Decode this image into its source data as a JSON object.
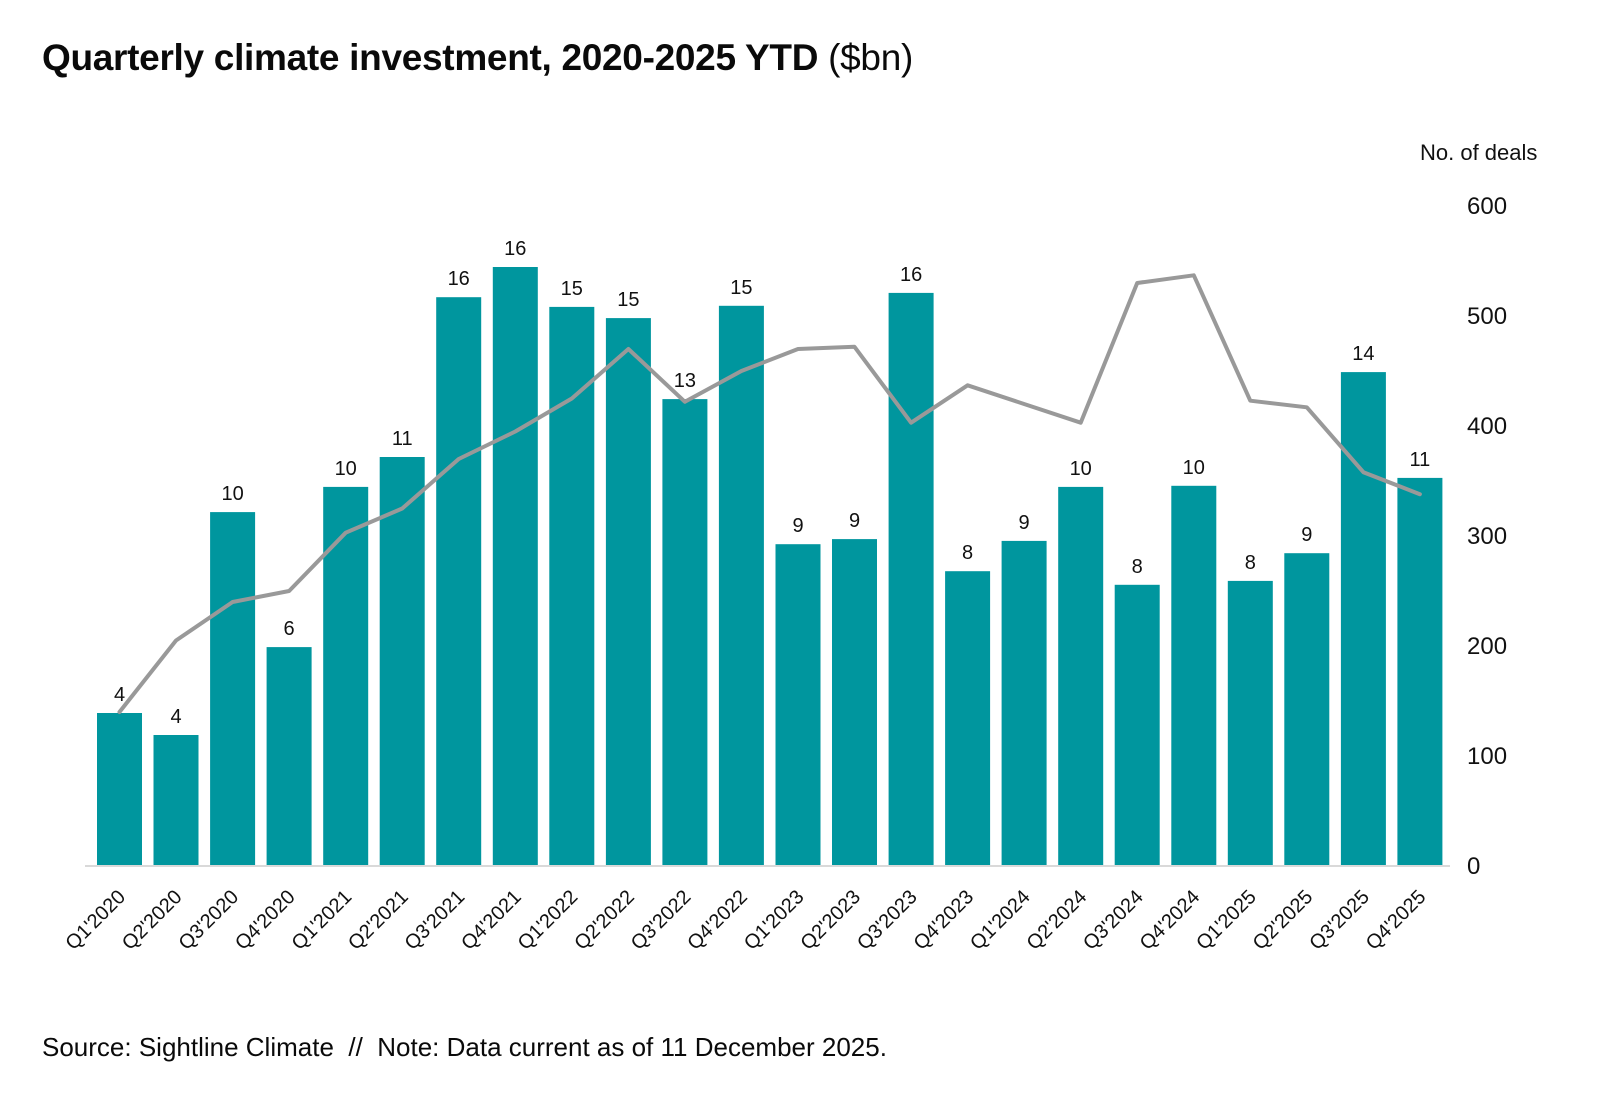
{
  "title": {
    "main": "Quarterly climate investment, 2020-2025 YTD",
    "suffix": " ($bn)"
  },
  "footer": "Source: Sightline Climate  //  Note: Data current as of 11 December 2025.",
  "colors": {
    "bar": "#00969E",
    "line": "#999999",
    "axis_line": "#D9D9D9",
    "text": "#111111"
  },
  "chart_data": {
    "type": "bar+line",
    "title": "Quarterly climate investment, 2020-2025 YTD ($bn)",
    "categories": [
      "Q1'2020",
      "Q2'2020",
      "Q3'2020",
      "Q4'2020",
      "Q1'2021",
      "Q2'2021",
      "Q3'2021",
      "Q4'2021",
      "Q1'2022",
      "Q2'2022",
      "Q3'2022",
      "Q4'2022",
      "Q1'2023",
      "Q2'2023",
      "Q3'2023",
      "Q4'2023",
      "Q1'2024",
      "Q2'2024",
      "Q3'2024",
      "Q4'2024",
      "Q1'2025",
      "Q2'2025",
      "Q3'2025",
      "Q4'2025"
    ],
    "series": [
      {
        "name": "Quarterly climate investment ($bn)",
        "type": "bar",
        "values": [
          4,
          4,
          10,
          6,
          10,
          11,
          16,
          16,
          15,
          15,
          13,
          15,
          9,
          9,
          16,
          8,
          9,
          10,
          8,
          10,
          8,
          9,
          14,
          11
        ],
        "values_est_bn": [
          4.25,
          3.64,
          9.83,
          6.08,
          10.53,
          11.36,
          15.8,
          16.64,
          15.53,
          15.22,
          12.97,
          15.56,
          8.94,
          9.08,
          15.92,
          8.19,
          9.03,
          10.53,
          7.81,
          10.56,
          7.92,
          8.69,
          13.72,
          10.78
        ]
      },
      {
        "name": "No. of deals",
        "type": "line",
        "values_est": [
          140,
          205,
          240,
          250,
          303,
          325,
          370,
          395,
          425,
          470,
          422,
          450,
          470,
          472,
          403,
          437,
          420,
          403,
          530,
          537,
          423,
          417,
          358,
          338
        ]
      }
    ],
    "right_axis": {
      "label": "No. of deals",
      "ticks": [
        600,
        500,
        400,
        300,
        200,
        100,
        0
      ],
      "range": [
        0,
        600
      ]
    },
    "left_axis": {
      "visible": false,
      "range_est": [
        0,
        18.3
      ]
    },
    "grid": false,
    "legend": "none"
  }
}
